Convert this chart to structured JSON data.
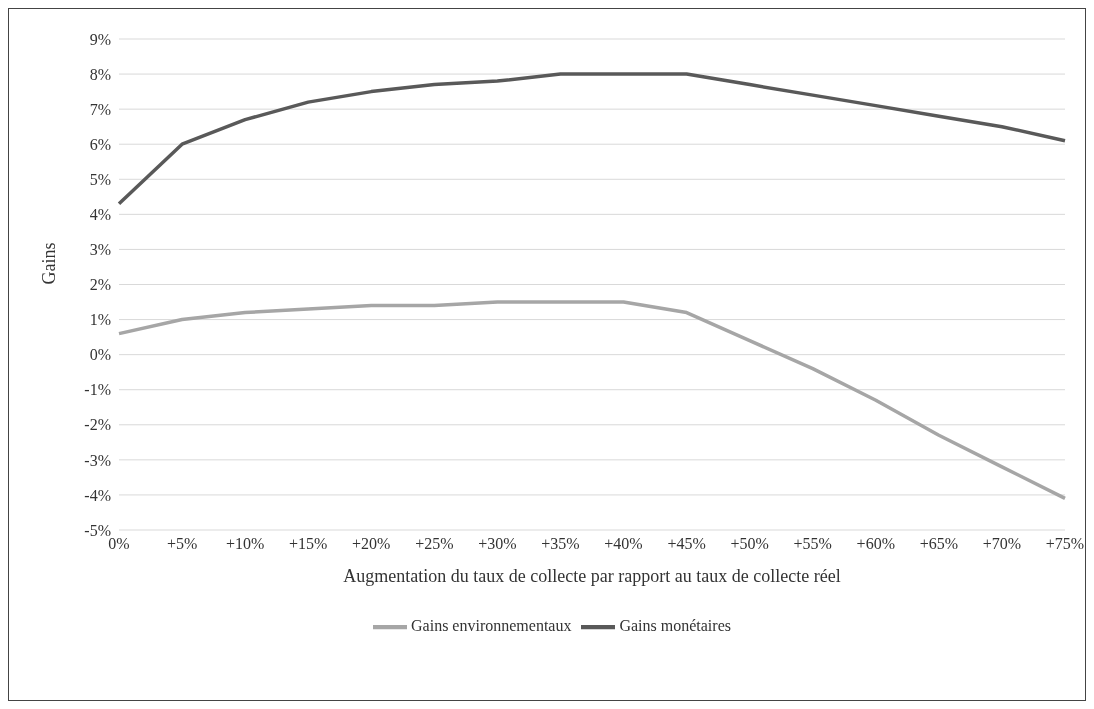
{
  "chart_data": {
    "type": "line",
    "xlabel": "Augmentation du taux de collecte par rapport au taux de collecte réel",
    "ylabel": "Gains",
    "categories": [
      "0%",
      "+5%",
      "+10%",
      "+15%",
      "+20%",
      "+25%",
      "+30%",
      "+35%",
      "+40%",
      "+45%",
      "+50%",
      "+55%",
      "+60%",
      "+65%",
      "+70%",
      "+75%"
    ],
    "series": [
      {
        "name": "Gains monétaires",
        "color": "#595959",
        "values": [
          4.3,
          6.0,
          6.7,
          7.2,
          7.5,
          7.7,
          7.8,
          8.0,
          8.0,
          8.0,
          7.7,
          7.4,
          7.1,
          6.8,
          6.5,
          6.1
        ]
      },
      {
        "name": "Gains environnementaux",
        "color": "#a6a6a6",
        "values": [
          0.6,
          1.0,
          1.2,
          1.3,
          1.4,
          1.4,
          1.5,
          1.5,
          1.5,
          1.2,
          0.4,
          -0.4,
          -1.3,
          -2.3,
          -3.2,
          -4.1
        ]
      }
    ],
    "ylim": [
      -5,
      9
    ],
    "yticks": [
      {
        "value": -5,
        "label": "-5%"
      },
      {
        "value": -4,
        "label": "-4%"
      },
      {
        "value": -3,
        "label": "-3%"
      },
      {
        "value": -2,
        "label": "-2%"
      },
      {
        "value": -1,
        "label": "-1%"
      },
      {
        "value": 0,
        "label": "0%"
      },
      {
        "value": 1,
        "label": "1%"
      },
      {
        "value": 2,
        "label": "2%"
      },
      {
        "value": 3,
        "label": "3%"
      },
      {
        "value": 4,
        "label": "4%"
      },
      {
        "value": 5,
        "label": "5%"
      },
      {
        "value": 6,
        "label": "6%"
      },
      {
        "value": 7,
        "label": "7%"
      },
      {
        "value": 8,
        "label": "8%"
      },
      {
        "value": 9,
        "label": "9%"
      }
    ],
    "grid": "y",
    "legend": "bottom",
    "marker": "none",
    "line_style": "solid"
  }
}
